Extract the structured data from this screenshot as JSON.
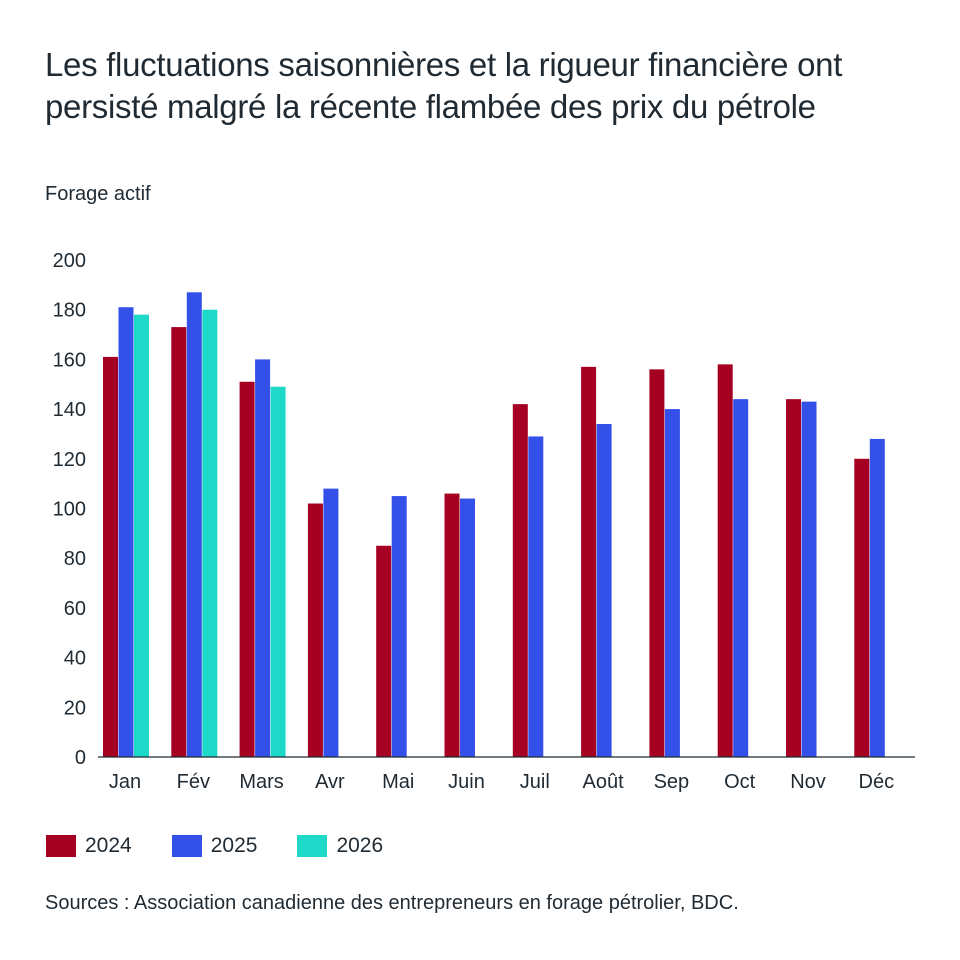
{
  "chart_data": {
    "type": "bar",
    "title": "Les fluctuations saisonnières et la rigueur financière ont persisté malgré la récente flambée des prix du pétrole",
    "subtitle": "Forage actif",
    "xlabel": "",
    "ylabel": "Forage actif",
    "ylim": [
      0,
      200
    ],
    "yticks": [
      "0",
      "20",
      "40",
      "60",
      "80",
      "100",
      "120",
      "140",
      "160",
      "180",
      "200"
    ],
    "grid": false,
    "legend_position": "bottom-left",
    "categories": [
      "Jan",
      "Fév",
      "Mars",
      "Avr",
      "Mai",
      "Juin",
      "Juil",
      "Août",
      "Sep",
      "Oct",
      "Nov",
      "Déc"
    ],
    "series": [
      {
        "name": "2024",
        "color": "#a50021",
        "values": [
          161,
          173,
          151,
          102,
          85,
          106,
          142,
          157,
          156,
          158,
          144,
          120
        ]
      },
      {
        "name": "2025",
        "color": "#3350e8",
        "values": [
          181,
          187,
          160,
          108,
          105,
          104,
          129,
          134,
          140,
          144,
          143,
          128
        ]
      },
      {
        "name": "2026",
        "color": "#1ed8c8",
        "values": [
          178,
          180,
          149,
          null,
          null,
          null,
          null,
          null,
          null,
          null,
          null,
          null
        ]
      }
    ],
    "source": "Sources : Association canadienne des entrepreneurs en forage pétrolier, BDC."
  }
}
